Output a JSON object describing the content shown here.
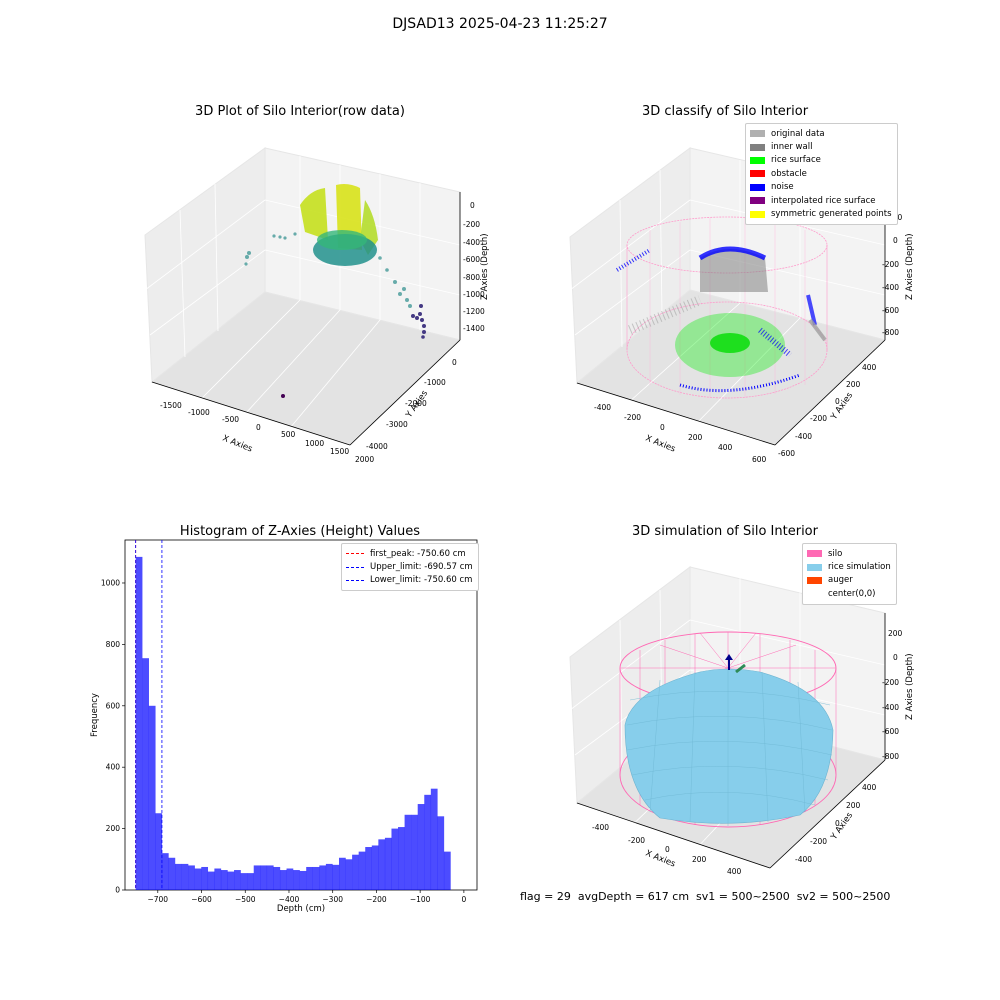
{
  "figure_title": "DJSAD13 2025-04-23 11:25:27",
  "footer": "flag = 29  avgDepth = 617 cm  sv1 = 500~2500  sv2 = 500~2500",
  "colors": {
    "silo": "#ff69b4",
    "rice_simulation": "#87ceeb",
    "auger": "#ff4500",
    "original_data": "#b0b0b0",
    "inner_wall": "#808080",
    "rice_surface": "#00ff00",
    "obstacle": "#ff0000",
    "noise": "#0000ff",
    "interpolated": "#800080",
    "symmetric": "#ffff00",
    "histogram": "#0000ff"
  },
  "chart_data": [
    {
      "type": "scatter3d",
      "title": "3D Plot of Silo Interior(row data)",
      "xlabel": "X Axies",
      "ylabel": "Y Axies",
      "zlabel": "Z Axies (Depth)",
      "xticks": [
        "-1500",
        "-1000",
        "-500",
        "0",
        "500",
        "1000",
        "1500",
        "2000"
      ],
      "yticks": [
        "0",
        "-1000",
        "-2000",
        "-3000",
        "-4000"
      ],
      "zticks": [
        "0",
        "-200",
        "-400",
        "-600",
        "-800",
        "-1000",
        "-1200",
        "-1400"
      ]
    },
    {
      "type": "scatter3d",
      "title": "3D classify of Silo Interior",
      "xlabel": "X Axies",
      "ylabel": "Y Axies",
      "zlabel": "Z Axies (Depth)",
      "xticks": [
        "-400",
        "-200",
        "0",
        "200",
        "400",
        "600"
      ],
      "yticks": [
        "400",
        "200",
        "0",
        "-200",
        "-400",
        "-600"
      ],
      "zticks": [
        "200",
        "0",
        "-200",
        "-400",
        "-600",
        "-800"
      ],
      "legend": [
        "original data",
        "inner wall",
        "rice surface",
        "obstacle",
        "noise",
        "interpolated rice surface",
        "symmetric generated points"
      ]
    },
    {
      "type": "bar",
      "title": "Histogram of Z-Axies (Height) Values",
      "xlabel": "Depth (cm)",
      "ylabel": "Frequency",
      "xlim": [
        -775,
        30
      ],
      "ylim": [
        0,
        1140
      ],
      "xticks": [
        -700,
        -600,
        -500,
        -400,
        -300,
        -200,
        -100,
        0
      ],
      "yticks": [
        0,
        200,
        400,
        600,
        800,
        1000
      ],
      "bin_start": -750.6,
      "bin_width": 15.0,
      "values": [
        1085,
        755,
        600,
        250,
        120,
        105,
        85,
        85,
        80,
        70,
        75,
        60,
        70,
        65,
        60,
        65,
        55,
        55,
        80,
        80,
        80,
        75,
        65,
        70,
        65,
        62,
        75,
        75,
        80,
        85,
        82,
        105,
        100,
        115,
        125,
        140,
        145,
        165,
        170,
        200,
        205,
        245,
        245,
        280,
        310,
        330,
        240,
        125
      ],
      "markers": [
        {
          "label": "first_peak: -750.60 cm",
          "x": -750.6,
          "color": "#ff0000"
        },
        {
          "label": "Upper_limit: -690.57 cm",
          "x": -690.57,
          "color": "#0000ff"
        },
        {
          "label": "Lower_limit: -750.60 cm",
          "x": -750.6,
          "color": "#0000ff"
        }
      ]
    },
    {
      "type": "surface3d",
      "title": "3D simulation of Silo Interior",
      "xlabel": "X Axies",
      "ylabel": "Y Axies",
      "zlabel": "Z Axies (Depth)",
      "xticks": [
        "-400",
        "-200",
        "0",
        "200",
        "400"
      ],
      "yticks": [
        "400",
        "200",
        "0",
        "-200",
        "-400"
      ],
      "zticks": [
        "200",
        "0",
        "-200",
        "-400",
        "-600",
        "-800"
      ],
      "legend": [
        "silo",
        "rice simulation",
        "auger",
        "center(0,0)"
      ]
    }
  ]
}
